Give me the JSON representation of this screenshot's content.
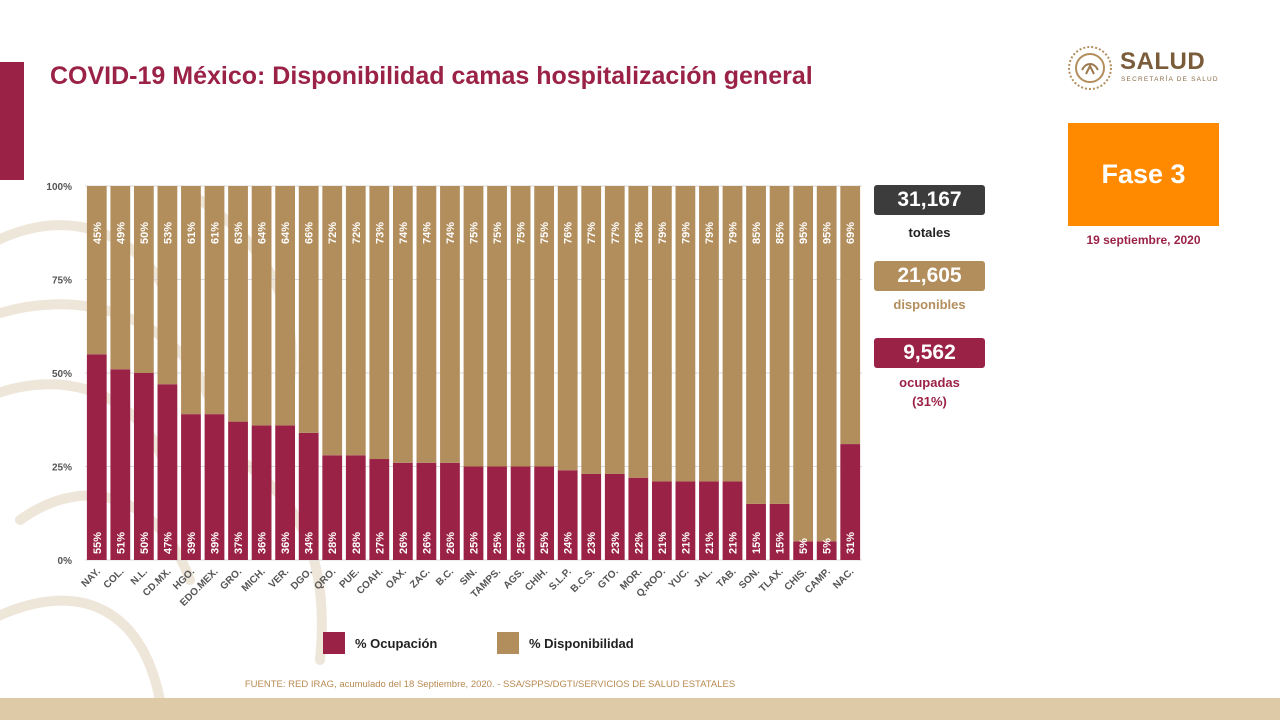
{
  "header": {
    "title": "COVID-19 México: Disponibilidad camas hospitalización general"
  },
  "logo": {
    "word": "SALUD",
    "subtitle": "SECRETARÍA DE SALUD"
  },
  "phase": {
    "label": "Fase 3",
    "date": "19 septiembre, 2020"
  },
  "stats": {
    "total_value": "31,167",
    "total_label": "totales",
    "available_value": "21,605",
    "available_label": "disponibles",
    "occupied_value": "9,562",
    "occupied_label": "ocupadas",
    "occupied_pct": "(31%)"
  },
  "legend": {
    "occupation": "% Ocupación",
    "availability": "% Disponibilidad"
  },
  "source": "FUENTE: RED IRAG, acumulado del 18 Septiembre, 2020. -  SSA/SPPS/DGTI/SERVICIOS DE SALUD ESTATALES",
  "colors": {
    "occupation": "#9b2247",
    "availability": "#b38e5d",
    "total_box": "#3c3c3c",
    "phase": "#ff8a00"
  },
  "chart_data": {
    "type": "bar",
    "stacked": true,
    "categories": [
      "NAY.",
      "COL.",
      "N.L.",
      "CD.MX.",
      "HGO.",
      "EDO.MEX.",
      "GRO.",
      "MICH.",
      "VER.",
      "DGO.",
      "QRO.",
      "PUE.",
      "COAH.",
      "OAX.",
      "ZAC.",
      "B.C.",
      "SIN.",
      "TAMPS.",
      "AGS.",
      "CHIH.",
      "S.L.P.",
      "B.C.S.",
      "GTO.",
      "MOR.",
      "Q.ROO.",
      "YUC.",
      "JAL.",
      "TAB.",
      "SON.",
      "TLAX.",
      "CHIS.",
      "CAMP.",
      "NAC."
    ],
    "series": [
      {
        "name": "% Ocupación",
        "values": [
          55,
          51,
          50,
          47,
          39,
          39,
          37,
          36,
          36,
          34,
          28,
          28,
          27,
          26,
          26,
          26,
          25,
          25,
          25,
          25,
          24,
          23,
          23,
          22,
          21,
          21,
          21,
          21,
          15,
          15,
          5,
          5,
          31
        ]
      },
      {
        "name": "% Disponibilidad",
        "values": [
          45,
          49,
          50,
          53,
          61,
          61,
          63,
          64,
          64,
          66,
          72,
          72,
          73,
          74,
          74,
          74,
          75,
          75,
          75,
          75,
          76,
          77,
          77,
          78,
          79,
          79,
          79,
          79,
          85,
          85,
          95,
          95,
          69
        ]
      }
    ],
    "yticks": [
      "0%",
      "25%",
      "50%",
      "75%",
      "100%"
    ],
    "ylim": [
      0,
      100
    ]
  }
}
